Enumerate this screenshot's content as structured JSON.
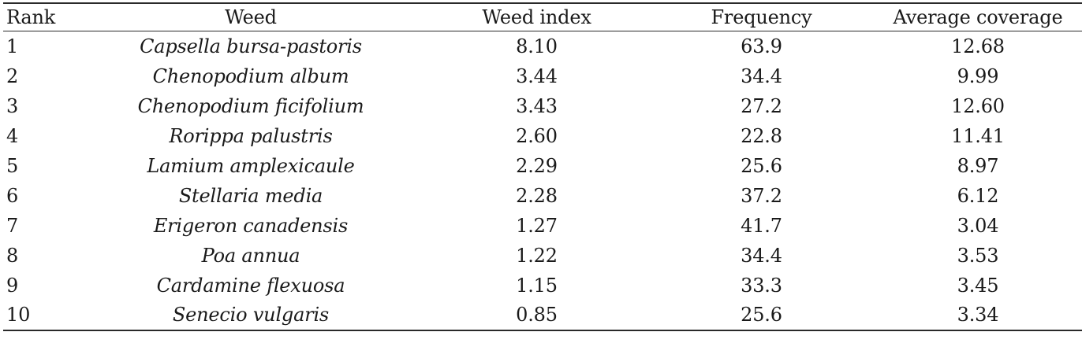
{
  "table": {
    "headers": {
      "rank": "Rank",
      "weed": "Weed",
      "weed_index": "Weed index",
      "frequency": "Frequency",
      "average_coverage": "Average coverage"
    },
    "rows": [
      {
        "rank": "1",
        "weed": "Capsella bursa-pastoris",
        "weed_index": "8.10",
        "frequency": "63.9",
        "average_coverage": "12.68"
      },
      {
        "rank": "2",
        "weed": "Chenopodium album",
        "weed_index": "3.44",
        "frequency": "34.4",
        "average_coverage": "9.99"
      },
      {
        "rank": "3",
        "weed": "Chenopodium ficifolium",
        "weed_index": "3.43",
        "frequency": "27.2",
        "average_coverage": "12.60"
      },
      {
        "rank": "4",
        "weed": "Rorippa palustris",
        "weed_index": "2.60",
        "frequency": "22.8",
        "average_coverage": "11.41"
      },
      {
        "rank": "5",
        "weed": "Lamium amplexicaule",
        "weed_index": "2.29",
        "frequency": "25.6",
        "average_coverage": "8.97"
      },
      {
        "rank": "6",
        "weed": "Stellaria media",
        "weed_index": "2.28",
        "frequency": "37.2",
        "average_coverage": "6.12"
      },
      {
        "rank": "7",
        "weed": "Erigeron canadensis",
        "weed_index": "1.27",
        "frequency": "41.7",
        "average_coverage": "3.04"
      },
      {
        "rank": "8",
        "weed": "Poa annua",
        "weed_index": "1.22",
        "frequency": "34.4",
        "average_coverage": "3.53"
      },
      {
        "rank": "9",
        "weed": "Cardamine flexuosa",
        "weed_index": "1.15",
        "frequency": "33.3",
        "average_coverage": "3.45"
      },
      {
        "rank": "10",
        "weed": "Senecio vulgaris",
        "weed_index": "0.85",
        "frequency": "25.6",
        "average_coverage": "3.34"
      }
    ]
  }
}
